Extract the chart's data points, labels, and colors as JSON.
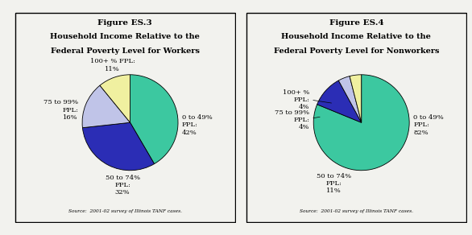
{
  "fig1": {
    "title_line1": "Figure ES.3",
    "title_line2": "Household Income Relative to the",
    "title_line3": "Federal Poverty Level for Workers",
    "slices": [
      42,
      32,
      16,
      11
    ],
    "colors": [
      "#3cc8a0",
      "#2b2db5",
      "#c0c4e8",
      "#f0f0a0"
    ],
    "startangle": 90,
    "label_0": "0 to 49%\nFPL:\n42%",
    "label_1": "50 to 74%\nFPL:\n32%",
    "label_2": "75 to 99%\nFPL:\n16%",
    "label_3": "100+ % FPL:\n11%",
    "source": "Source:  2001-02 survey of Illinois TANF cases."
  },
  "fig2": {
    "title_line1": "Figure ES.4",
    "title_line2": "Household Income Relative to the",
    "title_line3": "Federal Poverty Level for Nonworkers",
    "slices": [
      82,
      11,
      4,
      4
    ],
    "colors": [
      "#3cc8a0",
      "#2b2db5",
      "#c0c4e8",
      "#f0f0a0"
    ],
    "startangle": 90,
    "label_0": "0 to 49%\nFPL:\n82%",
    "label_1": "50 to 74%\nFPL:\n11%",
    "label_2": "75 to 99%\nFPL:\n4%",
    "label_3": "100+ %\nFPL:\n4%",
    "source": "Source:  2001-02 survey of Illinois TANF cases."
  },
  "background_color": "#f2f2ee"
}
